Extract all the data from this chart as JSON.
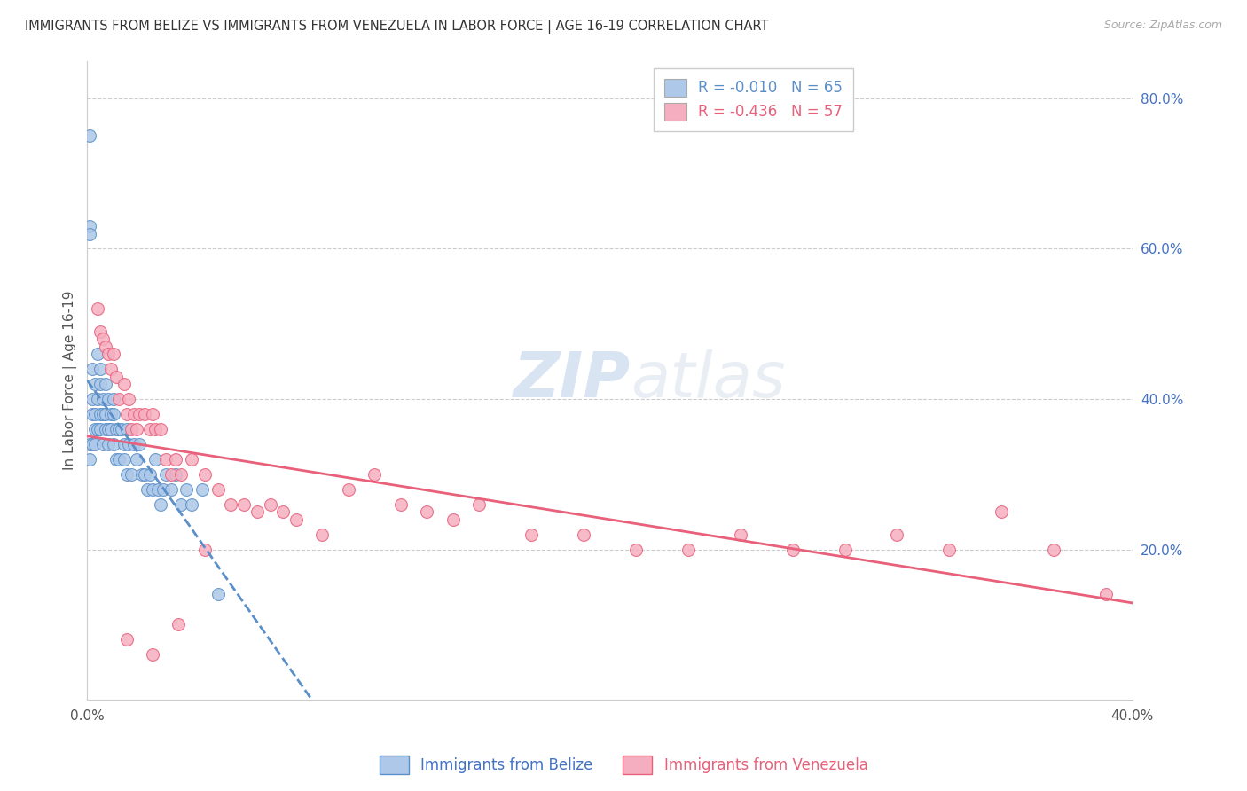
{
  "title": "IMMIGRANTS FROM BELIZE VS IMMIGRANTS FROM VENEZUELA IN LABOR FORCE | AGE 16-19 CORRELATION CHART",
  "source": "Source: ZipAtlas.com",
  "ylabel": "In Labor Force | Age 16-19",
  "xlim": [
    0.0,
    0.4
  ],
  "ylim": [
    0.0,
    0.85
  ],
  "belize_color": "#adc8e8",
  "venezuela_color": "#f5aec0",
  "belize_line_color": "#5b8fc9",
  "venezuela_line_color": "#e8607a",
  "belize_R": -0.01,
  "belize_N": 65,
  "venezuela_R": -0.436,
  "venezuela_N": 57,
  "belize_x": [
    0.001,
    0.001,
    0.001,
    0.001,
    0.001,
    0.002,
    0.002,
    0.002,
    0.002,
    0.003,
    0.003,
    0.003,
    0.003,
    0.004,
    0.004,
    0.004,
    0.005,
    0.005,
    0.005,
    0.005,
    0.006,
    0.006,
    0.006,
    0.007,
    0.007,
    0.007,
    0.008,
    0.008,
    0.008,
    0.009,
    0.009,
    0.01,
    0.01,
    0.01,
    0.011,
    0.011,
    0.012,
    0.012,
    0.013,
    0.014,
    0.014,
    0.015,
    0.015,
    0.016,
    0.017,
    0.018,
    0.019,
    0.02,
    0.021,
    0.022,
    0.023,
    0.024,
    0.025,
    0.026,
    0.027,
    0.028,
    0.029,
    0.03,
    0.032,
    0.034,
    0.036,
    0.038,
    0.04,
    0.044,
    0.05
  ],
  "belize_y": [
    0.75,
    0.63,
    0.62,
    0.34,
    0.32,
    0.44,
    0.4,
    0.38,
    0.34,
    0.42,
    0.38,
    0.36,
    0.34,
    0.46,
    0.4,
    0.36,
    0.44,
    0.42,
    0.38,
    0.36,
    0.4,
    0.38,
    0.34,
    0.42,
    0.38,
    0.36,
    0.4,
    0.36,
    0.34,
    0.38,
    0.36,
    0.4,
    0.38,
    0.34,
    0.36,
    0.32,
    0.36,
    0.32,
    0.36,
    0.34,
    0.32,
    0.36,
    0.3,
    0.34,
    0.3,
    0.34,
    0.32,
    0.34,
    0.3,
    0.3,
    0.28,
    0.3,
    0.28,
    0.32,
    0.28,
    0.26,
    0.28,
    0.3,
    0.28,
    0.3,
    0.26,
    0.28,
    0.26,
    0.28,
    0.14
  ],
  "venezuela_x": [
    0.004,
    0.005,
    0.006,
    0.007,
    0.008,
    0.009,
    0.01,
    0.011,
    0.012,
    0.014,
    0.015,
    0.016,
    0.017,
    0.018,
    0.019,
    0.02,
    0.022,
    0.024,
    0.025,
    0.026,
    0.028,
    0.03,
    0.032,
    0.034,
    0.036,
    0.04,
    0.045,
    0.05,
    0.055,
    0.06,
    0.065,
    0.07,
    0.075,
    0.08,
    0.09,
    0.1,
    0.11,
    0.12,
    0.13,
    0.14,
    0.15,
    0.17,
    0.19,
    0.21,
    0.23,
    0.25,
    0.27,
    0.29,
    0.31,
    0.33,
    0.35,
    0.37,
    0.39,
    0.015,
    0.025,
    0.035,
    0.045
  ],
  "venezuela_y": [
    0.52,
    0.49,
    0.48,
    0.47,
    0.46,
    0.44,
    0.46,
    0.43,
    0.4,
    0.42,
    0.38,
    0.4,
    0.36,
    0.38,
    0.36,
    0.38,
    0.38,
    0.36,
    0.38,
    0.36,
    0.36,
    0.32,
    0.3,
    0.32,
    0.3,
    0.32,
    0.3,
    0.28,
    0.26,
    0.26,
    0.25,
    0.26,
    0.25,
    0.24,
    0.22,
    0.28,
    0.3,
    0.26,
    0.25,
    0.24,
    0.26,
    0.22,
    0.22,
    0.2,
    0.2,
    0.22,
    0.2,
    0.2,
    0.22,
    0.2,
    0.25,
    0.2,
    0.14,
    0.08,
    0.06,
    0.1,
    0.2
  ],
  "watermark_zip": "ZIP",
  "watermark_atlas": "atlas",
  "background_color": "#ffffff",
  "grid_color": "#cccccc"
}
